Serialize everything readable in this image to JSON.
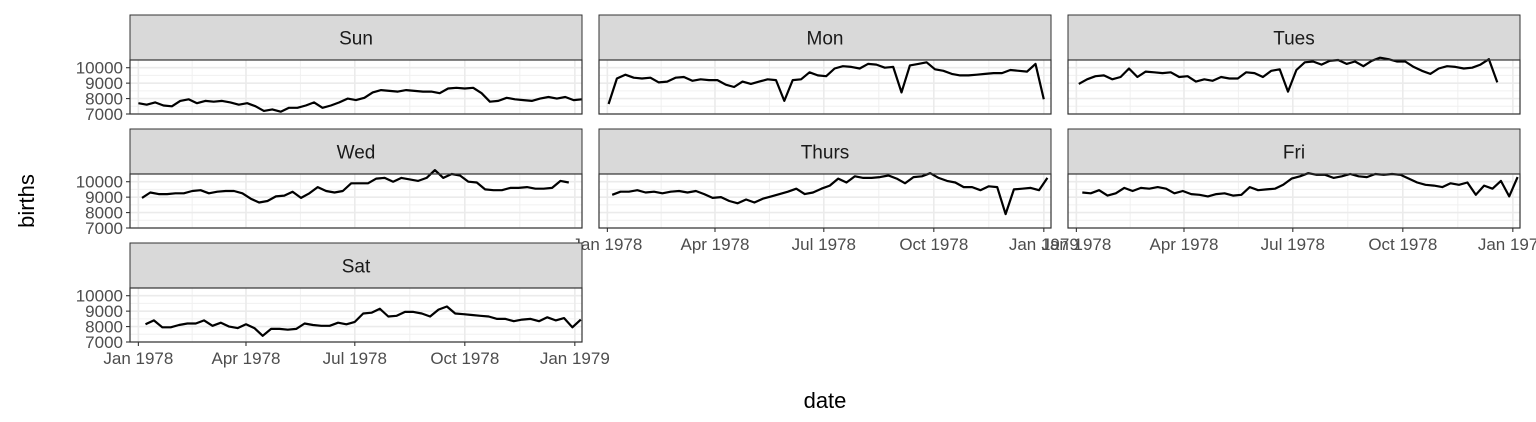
{
  "chart_data": {
    "type": "line",
    "xlabel": "date",
    "ylabel": "births",
    "xlim": [
      "1977-12-25",
      "1979-01-07"
    ],
    "ylim": [
      7000,
      10500
    ],
    "x_ticks": [
      {
        "date": "1978-01-01",
        "label": "Jan 1978"
      },
      {
        "date": "1978-04-01",
        "label": "Apr 1978"
      },
      {
        "date": "1978-07-01",
        "label": "Jul 1978"
      },
      {
        "date": "1978-10-01",
        "label": "Oct 1978"
      },
      {
        "date": "1979-01-01",
        "label": "Jan 1979"
      }
    ],
    "y_ticks": [
      {
        "value": 7000,
        "label": "7000"
      },
      {
        "value": 8000,
        "label": "8000"
      },
      {
        "value": 9000,
        "label": "9000"
      },
      {
        "value": 10000,
        "label": "10000"
      }
    ],
    "grid": true,
    "line_color": "#000000",
    "facets": [
      {
        "name": "Sun",
        "start": "1978-01-01",
        "values": [
          7700,
          7600,
          7750,
          7550,
          7500,
          7850,
          7950,
          7700,
          7850,
          7800,
          7850,
          7750,
          7600,
          7700,
          7500,
          7200,
          7300,
          7150,
          7400,
          7400,
          7550,
          7750,
          7400,
          7550,
          7750,
          8000,
          7900,
          8050,
          8400,
          8550,
          8500,
          8450,
          8550,
          8500,
          8450,
          8450,
          8350,
          8650,
          8700,
          8650,
          8700,
          8350,
          7800,
          7850,
          8050,
          7950,
          7900,
          7850,
          8000,
          8100,
          8000,
          8100,
          7900,
          7950
        ]
      },
      {
        "name": "Mon",
        "start": "1978-01-02",
        "values": [
          7650,
          9300,
          9550,
          9350,
          9300,
          9350,
          9050,
          9100,
          9350,
          9400,
          9150,
          9250,
          9200,
          9200,
          8900,
          8750,
          9100,
          8950,
          9100,
          9250,
          9200,
          7850,
          9200,
          9250,
          9700,
          9500,
          9450,
          9950,
          10100,
          10050,
          9950,
          10250,
          10200,
          10000,
          10050,
          8400,
          10150,
          10250,
          10350,
          9900,
          9800,
          9600,
          9500,
          9500,
          9550,
          9600,
          9650,
          9650,
          9850,
          9800,
          9750,
          10250,
          7950
        ]
      },
      {
        "name": "Tues",
        "start": "1978-01-03",
        "values": [
          8950,
          9250,
          9450,
          9500,
          9250,
          9400,
          9950,
          9400,
          9750,
          9700,
          9650,
          9700,
          9400,
          9450,
          9100,
          9250,
          9150,
          9400,
          9300,
          9300,
          9700,
          9650,
          9400,
          9800,
          9900,
          8450,
          9850,
          10350,
          10400,
          10200,
          10450,
          10500,
          10250,
          10400,
          10100,
          10450,
          10650,
          10550,
          10400,
          10400,
          10050,
          9800,
          9600,
          9950,
          10100,
          10050,
          9950,
          10000,
          10200,
          10550,
          9050
        ]
      },
      {
        "name": "Wed",
        "start": "1978-01-04",
        "values": [
          8950,
          9300,
          9200,
          9200,
          9250,
          9250,
          9400,
          9450,
          9250,
          9350,
          9400,
          9400,
          9250,
          8900,
          8650,
          8750,
          9050,
          9100,
          9350,
          8950,
          9250,
          9650,
          9400,
          9300,
          9400,
          9900,
          9900,
          9900,
          10200,
          10250,
          10000,
          10250,
          10150,
          10050,
          10250,
          10750,
          10250,
          10500,
          10400,
          10000,
          9950,
          9500,
          9450,
          9450,
          9600,
          9600,
          9650,
          9550,
          9550,
          9600,
          10050,
          9950
        ]
      },
      {
        "name": "Thurs",
        "start": "1978-01-05",
        "values": [
          9150,
          9350,
          9350,
          9450,
          9300,
          9350,
          9250,
          9350,
          9400,
          9300,
          9400,
          9200,
          8950,
          9000,
          8750,
          8600,
          8850,
          8650,
          8900,
          9050,
          9200,
          9350,
          9550,
          9200,
          9300,
          9550,
          9750,
          10200,
          9950,
          10350,
          10250,
          10250,
          10300,
          10400,
          10200,
          9900,
          10300,
          10350,
          10550,
          10250,
          10050,
          9950,
          9650,
          9650,
          9450,
          9700,
          9650,
          7900,
          9500,
          9550,
          9600,
          9450,
          10250
        ]
      },
      {
        "name": "Fri",
        "start": "1978-01-06",
        "values": [
          9300,
          9250,
          9450,
          9100,
          9250,
          9600,
          9400,
          9600,
          9550,
          9650,
          9550,
          9250,
          9400,
          9200,
          9150,
          9050,
          9200,
          9250,
          9100,
          9150,
          9650,
          9450,
          9500,
          9550,
          9800,
          10200,
          10350,
          10550,
          10450,
          10450,
          10250,
          10350,
          10500,
          10350,
          10300,
          10500,
          10450,
          10500,
          10450,
          10200,
          9950,
          9800,
          9750,
          9650,
          9900,
          9800,
          9950,
          9150,
          9750,
          9550,
          10050,
          9050,
          10300
        ]
      },
      {
        "name": "Sat",
        "start": "1978-01-07",
        "values": [
          8150,
          8400,
          7950,
          7950,
          8100,
          8200,
          8200,
          8400,
          8050,
          8250,
          8000,
          7900,
          8150,
          7900,
          7400,
          7850,
          7850,
          7800,
          7850,
          8200,
          8100,
          8050,
          8050,
          8250,
          8150,
          8300,
          8850,
          8900,
          9150,
          8650,
          8700,
          8950,
          8950,
          8850,
          8650,
          9100,
          9300,
          8850,
          8800,
          8750,
          8700,
          8650,
          8500,
          8500,
          8350,
          8450,
          8500,
          8350,
          8600,
          8400,
          8550,
          7950,
          8450
        ]
      }
    ]
  }
}
